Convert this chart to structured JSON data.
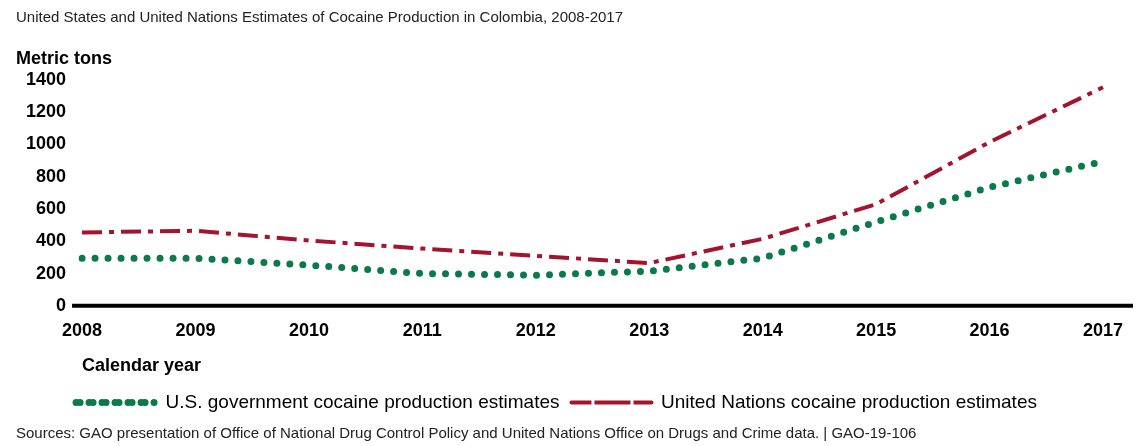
{
  "chart_data": {
    "type": "line",
    "title": "United States and United Nations Estimates of Cocaine Production in Colombia, 2008-2017",
    "ylabel": "Metric tons",
    "xlabel": "Calendar year",
    "categories": [
      "2008",
      "2009",
      "2010",
      "2011",
      "2012",
      "2013",
      "2014",
      "2015",
      "2016",
      "2017"
    ],
    "series": [
      {
        "name": "U.S. government cocaine production estimates",
        "color": "#0a7a4a",
        "line_style": "dotted",
        "values": [
          295,
          295,
          252,
          200,
          190,
          215,
          295,
          520,
          735,
          895
        ]
      },
      {
        "name": "United Nations cocaine production estimates",
        "color": "#a3142e",
        "line_style": "dashdot",
        "values": [
          455,
          465,
          405,
          355,
          310,
          265,
          415,
          630,
          1015,
          1355
        ]
      }
    ],
    "ylim": [
      0,
      1400
    ],
    "yticks": [
      0,
      200,
      400,
      600,
      800,
      1000,
      1200,
      1400
    ],
    "grid": false,
    "legend": "bottom",
    "marker": "none",
    "annotations": [
      "Sources: GAO presentation of Office of National Drug Control Policy and United Nations Office on Drugs and Crime data.  |  GAO-19-106"
    ]
  }
}
